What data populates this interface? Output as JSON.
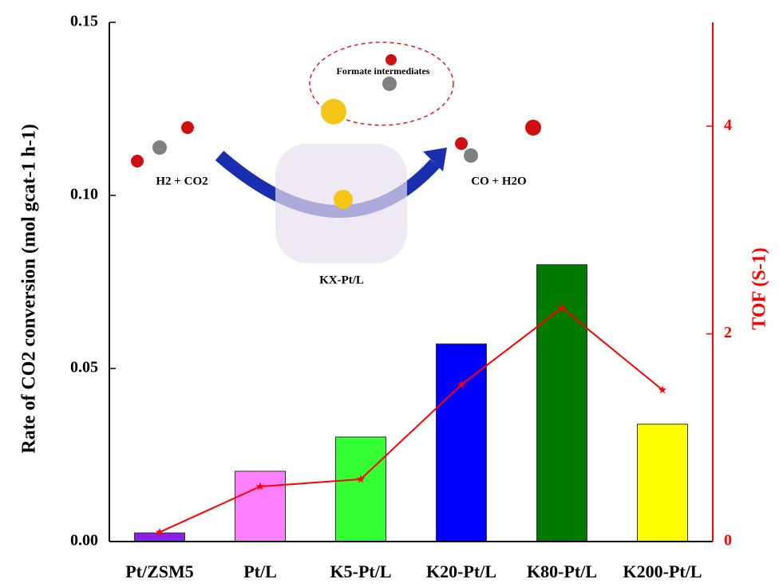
{
  "chart_data": {
    "type": "bar",
    "categories": [
      "Pt/ZSM5",
      "Pt/L",
      "K5-Pt/L",
      "K20-Pt/L",
      "K80-Pt/L",
      "K200-Pt/L"
    ],
    "series": [
      {
        "name": "Rate of CO2 conversion",
        "type": "bar",
        "colors": [
          "#8a1fe6",
          "#ff80ff",
          "#33ff33",
          "#0000ff",
          "#007a00",
          "#ffff00"
        ],
        "values": [
          0.0025,
          0.0203,
          0.0302,
          0.0571,
          0.08,
          0.0339
        ]
      },
      {
        "name": "TOF",
        "type": "line",
        "axis": "y2",
        "color": "#ff0000",
        "values": [
          0.09,
          0.53,
          0.6,
          1.51,
          2.25,
          1.46
        ]
      }
    ],
    "y_label": "Rate of CO2 conversion (mol gcat-1 h-1)",
    "y2_label": "TOF (S-1)",
    "ylim": [
      0,
      0.15
    ],
    "yticks": [
      {
        "value": 0,
        "label": "0.00"
      },
      0.05,
      {
        "value": 0.1,
        "label": "0.10"
      },
      0.15
    ],
    "y2lim": [
      0,
      5
    ],
    "y2ticks": [
      0,
      2,
      4
    ],
    "annotations": [
      "Formate intermediates",
      "H2 + CO2",
      "CO + H2O",
      "KX-Pt/L"
    ]
  }
}
